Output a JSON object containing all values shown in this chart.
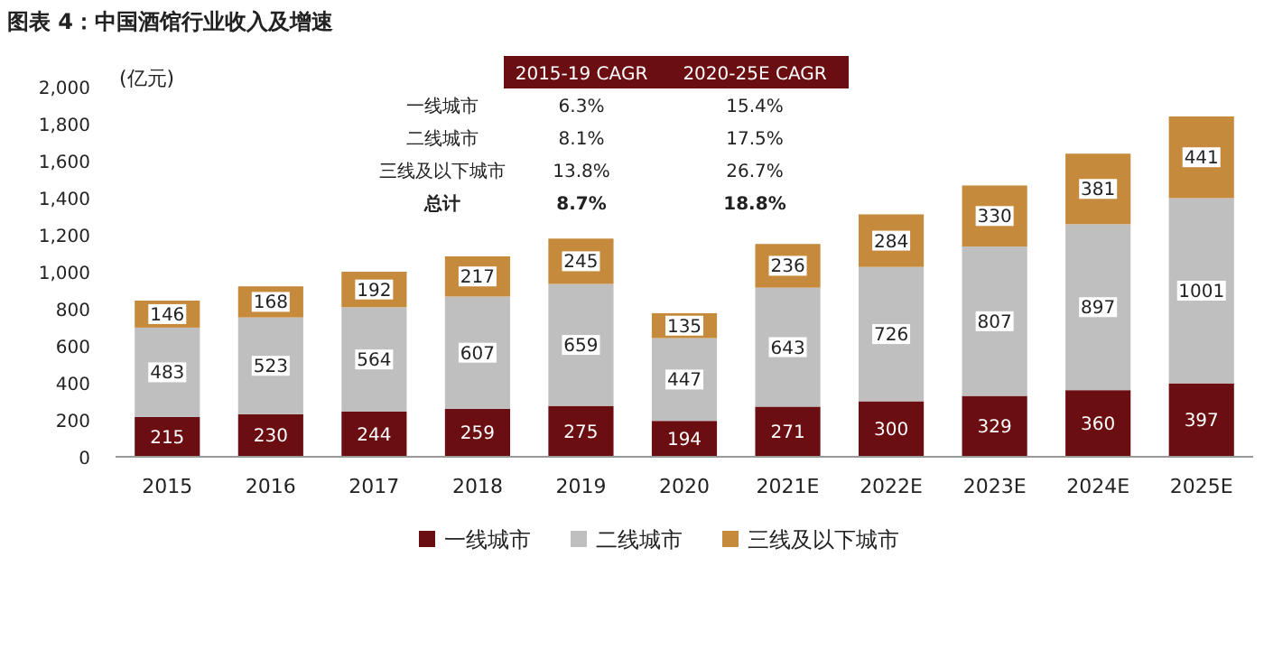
{
  "chart_data": {
    "type": "bar",
    "stacked": true,
    "title": "图表 4：中国酒馆行业收入及增速",
    "ylabel": "(亿元)",
    "categories": [
      "2015",
      "2016",
      "2017",
      "2018",
      "2019",
      "2020",
      "2021E",
      "2022E",
      "2023E",
      "2024E",
      "2025E"
    ],
    "series": [
      {
        "name": "一线城市",
        "color": "#6b0e12",
        "values": [
          215,
          230,
          244,
          259,
          275,
          194,
          271,
          300,
          329,
          360,
          397
        ]
      },
      {
        "name": "二线城市",
        "color": "#bfbfbf",
        "values": [
          483,
          523,
          564,
          607,
          659,
          447,
          643,
          726,
          807,
          897,
          1001
        ]
      },
      {
        "name": "三线及以下城市",
        "color": "#c58a3c",
        "values": [
          146,
          168,
          192,
          217,
          245,
          135,
          236,
          284,
          330,
          381,
          441
        ]
      }
    ],
    "ylim": [
      0,
      2000
    ],
    "yticks": [
      0,
      200,
      400,
      600,
      800,
      {
        "value": 1000,
        "label": "1,000"
      },
      {
        "value": 1200,
        "label": "1,200"
      },
      {
        "value": 1400,
        "label": "1,400"
      },
      {
        "value": 1600,
        "label": "1,600"
      },
      {
        "value": 1800,
        "label": "1,800"
      },
      {
        "value": 2000,
        "label": "2,000"
      }
    ],
    "data_labels": true,
    "legend": "bottom",
    "grid": false,
    "annotations": [
      "2015-19 CAGR",
      "2020-25E CAGR",
      "一线城市",
      "6.3%",
      "15.4%",
      "二线城市",
      "8.1%",
      "17.5%",
      "三线及以下城市",
      "13.8%",
      "26.7%",
      "总计",
      "8.7%",
      "18.8%"
    ]
  }
}
